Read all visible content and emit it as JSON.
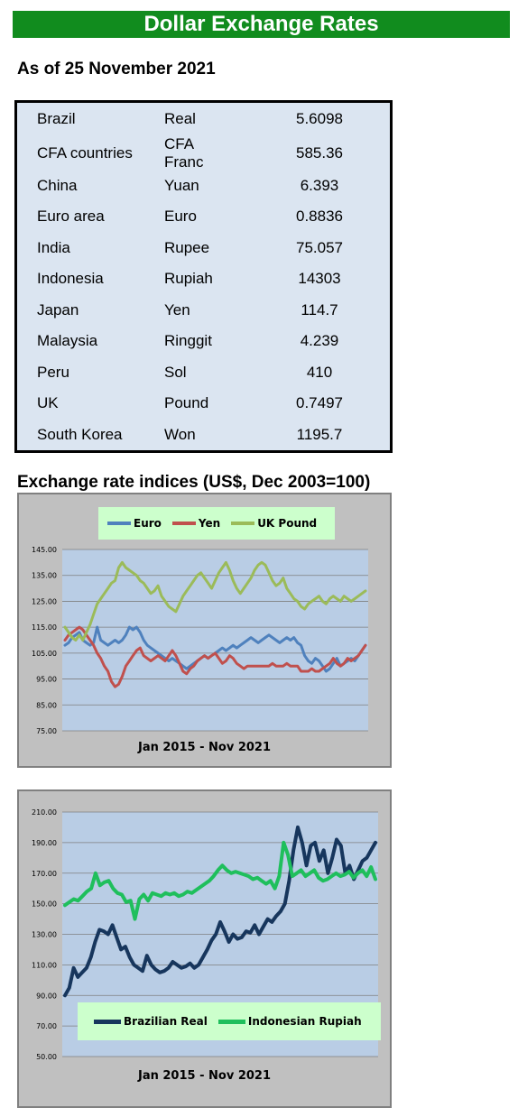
{
  "header": {
    "title": "Dollar Exchange Rates",
    "as_of": "As of 25 November 2021"
  },
  "rates_table": [
    {
      "country": "Brazil",
      "currency": "Real",
      "rate": "5.6098"
    },
    {
      "country": "CFA countries",
      "currency": "CFA Franc",
      "rate": "585.36"
    },
    {
      "country": "China",
      "currency": "Yuan",
      "rate": "6.393"
    },
    {
      "country": "Euro area",
      "currency": "Euro",
      "rate": "0.8836"
    },
    {
      "country": "India",
      "currency": "Rupee",
      "rate": "75.057"
    },
    {
      "country": "Indonesia",
      "currency": "Rupiah",
      "rate": "14303"
    },
    {
      "country": "Japan",
      "currency": "Yen",
      "rate": "114.7"
    },
    {
      "country": "Malaysia",
      "currency": "Ringgit",
      "rate": "4.239"
    },
    {
      "country": "Peru",
      "currency": "Sol",
      "rate": "410"
    },
    {
      "country": "UK",
      "currency": "Pound",
      "rate": "0.7497"
    },
    {
      "country": "South Korea",
      "currency": "Won",
      "rate": "1195.7"
    }
  ],
  "indices_heading": "Exchange rate indices (US$, Dec 2003=100)",
  "chart_data": [
    {
      "type": "line",
      "xlabel": "Jan 2015 - Nov 2021",
      "ylim": [
        75,
        145
      ],
      "yticks": [
        "75.00",
        "85.00",
        "95.00",
        "105.00",
        "115.00",
        "125.00",
        "135.00",
        "145.00"
      ],
      "legend_position": "top",
      "series": [
        {
          "name": "Euro",
          "color": "#4f81bd",
          "values": [
            108,
            109,
            111,
            112,
            113,
            110,
            109,
            108,
            109,
            115,
            110,
            109,
            108,
            109,
            110,
            109,
            110,
            112,
            115,
            114,
            115,
            113,
            110,
            108,
            107,
            106,
            105,
            104,
            103,
            102,
            103,
            102,
            101,
            100,
            99,
            100,
            101,
            102,
            103,
            104,
            103,
            104,
            105,
            106,
            107,
            106,
            107,
            108,
            107,
            108,
            109,
            110,
            111,
            110,
            109,
            110,
            111,
            112,
            111,
            110,
            109,
            110,
            111,
            110,
            111,
            109,
            108,
            104,
            102,
            101,
            103,
            102,
            100,
            98,
            99,
            101,
            103,
            100,
            101,
            102,
            103,
            102,
            104,
            106,
            108
          ]
        },
        {
          "name": "Yen",
          "color": "#c0504d",
          "values": [
            110,
            112,
            113,
            114,
            115,
            114,
            112,
            110,
            108,
            105,
            103,
            100,
            98,
            94,
            92,
            93,
            96,
            100,
            102,
            104,
            106,
            107,
            104,
            103,
            102,
            103,
            104,
            103,
            102,
            104,
            106,
            104,
            101,
            98,
            97,
            99,
            100,
            102,
            103,
            104,
            103,
            104,
            105,
            103,
            101,
            102,
            104,
            103,
            101,
            100,
            99,
            100,
            100,
            100,
            100,
            100,
            100,
            100,
            101,
            100,
            100,
            100,
            101,
            100,
            100,
            100,
            98,
            98,
            98,
            99,
            98,
            98,
            99,
            100,
            101,
            103,
            101,
            100,
            101,
            103,
            102,
            103,
            104,
            106,
            108
          ]
        },
        {
          "name": "UK Pound",
          "color": "#9bbb59",
          "values": [
            115,
            113,
            111,
            110,
            112,
            110,
            113,
            116,
            120,
            124,
            126,
            128,
            130,
            132,
            133,
            138,
            140,
            138,
            137,
            136,
            135,
            133,
            132,
            130,
            128,
            129,
            131,
            127,
            125,
            123,
            122,
            121,
            124,
            127,
            129,
            131,
            133,
            135,
            136,
            134,
            132,
            130,
            133,
            136,
            138,
            140,
            137,
            133,
            130,
            128,
            130,
            132,
            134,
            137,
            139,
            140,
            139,
            136,
            133,
            131,
            132,
            134,
            130,
            128,
            126,
            125,
            123,
            122,
            124,
            125,
            126,
            127,
            125,
            124,
            126,
            127,
            126,
            125,
            127,
            126,
            125,
            126,
            127,
            128,
            129
          ]
        }
      ]
    },
    {
      "type": "line",
      "xlabel": "Jan 2015 - Nov 2021",
      "ylim": [
        50,
        210
      ],
      "yticks": [
        "50.00",
        "70.00",
        "90.00",
        "110.00",
        "130.00",
        "150.00",
        "170.00",
        "190.00",
        "210.00"
      ],
      "legend_position": "bottom",
      "series": [
        {
          "name": "Brazilian Real",
          "color": "#17365d",
          "values": [
            90,
            95,
            108,
            102,
            105,
            108,
            115,
            125,
            133,
            132,
            130,
            136,
            128,
            120,
            122,
            115,
            110,
            108,
            106,
            116,
            110,
            107,
            105,
            106,
            108,
            112,
            110,
            108,
            109,
            111,
            108,
            110,
            115,
            120,
            126,
            130,
            138,
            132,
            125,
            130,
            127,
            128,
            132,
            131,
            136,
            130,
            135,
            140,
            138,
            142,
            145,
            150,
            165,
            185,
            200,
            190,
            175,
            188,
            190,
            178,
            185,
            170,
            180,
            192,
            188,
            170,
            175,
            166,
            172,
            178,
            180,
            185,
            190
          ]
        },
        {
          "name": "Indonesian Rupiah",
          "color": "#1fbf5c",
          "values": [
            149,
            151,
            153,
            152,
            155,
            158,
            160,
            170,
            162,
            164,
            165,
            160,
            157,
            156,
            151,
            152,
            140,
            153,
            156,
            152,
            157,
            156,
            155,
            157,
            156,
            157,
            155,
            156,
            158,
            157,
            159,
            161,
            163,
            165,
            168,
            172,
            175,
            172,
            170,
            171,
            170,
            169,
            168,
            166,
            167,
            165,
            163,
            165,
            160,
            168,
            190,
            182,
            168,
            170,
            172,
            168,
            170,
            172,
            167,
            165,
            166,
            168,
            170,
            168,
            169,
            171,
            167,
            170,
            172,
            168,
            174,
            166
          ]
        }
      ]
    }
  ]
}
